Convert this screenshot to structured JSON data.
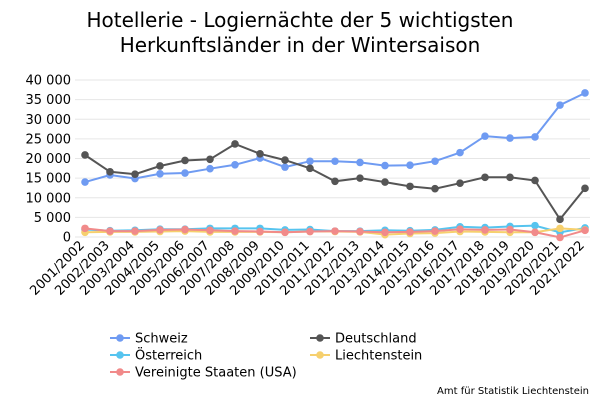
{
  "chart_data": {
    "type": "line",
    "title_lines": [
      "Hotellerie - Logiernächte der 5 wichtigsten",
      "Herkunftsländer in der Wintersaison"
    ],
    "x": [
      "2001/2002",
      "2002/2003",
      "2003/2004",
      "2004/2005",
      "2005/2006",
      "2006/2007",
      "2007/2008",
      "2008/2009",
      "2009/2010",
      "2010/2011",
      "2011/2012",
      "2012/2013",
      "2013/2014",
      "2014/2015",
      "2015/2016",
      "2016/2017",
      "2017/2018",
      "2018/2019",
      "2019/2020",
      "2020/2021",
      "2021/2022"
    ],
    "ylim": [
      0,
      40000
    ],
    "yticks": [
      0,
      5000,
      10000,
      15000,
      20000,
      25000,
      30000,
      35000,
      40000
    ],
    "ytick_labels": [
      "0",
      "5 000",
      "10 000",
      "15 000",
      "20 000",
      "25 000",
      "30 000",
      "35 000",
      "40 000"
    ],
    "grid": true,
    "legend_position": "bottom",
    "source": "Amt für Statistik Liechtenstein",
    "series": [
      {
        "name": "Schweiz",
        "color": "#6f9bf2",
        "values": [
          14000,
          15800,
          14900,
          16100,
          16300,
          17400,
          18400,
          20100,
          17800,
          19300,
          19300,
          19000,
          18200,
          18300,
          19300,
          21500,
          25700,
          25200,
          25500,
          33600,
          36700
        ]
      },
      {
        "name": "Deutschland",
        "color": "#555555",
        "values": [
          20900,
          16600,
          16000,
          18100,
          19500,
          19800,
          23700,
          21200,
          19600,
          17500,
          14200,
          15000,
          14000,
          12900,
          12300,
          13700,
          15200,
          15200,
          14400,
          4500,
          12400
        ]
      },
      {
        "name": "Österreich",
        "color": "#56c4ef",
        "values": [
          1900,
          1600,
          1700,
          2000,
          2000,
          2200,
          2200,
          2200,
          1800,
          1900,
          1500,
          1500,
          1700,
          1600,
          1800,
          2600,
          2400,
          2700,
          2900,
          1200,
          2300
        ]
      },
      {
        "name": "Liechtenstein",
        "color": "#f6d06e",
        "values": [
          1200,
          1300,
          1300,
          1400,
          1500,
          1300,
          1300,
          1300,
          1200,
          1400,
          1400,
          1300,
          600,
          900,
          1000,
          1400,
          1300,
          1200,
          1200,
          2200,
          1800
        ]
      },
      {
        "name": "Vereinigte Staaten (USA)",
        "color": "#f18a8a",
        "values": [
          2200,
          1500,
          1500,
          1800,
          1900,
          1700,
          1500,
          1400,
          1200,
          1400,
          1500,
          1400,
          1200,
          1300,
          1500,
          2000,
          1800,
          1900,
          1200,
          -100,
          1700
        ]
      }
    ]
  }
}
